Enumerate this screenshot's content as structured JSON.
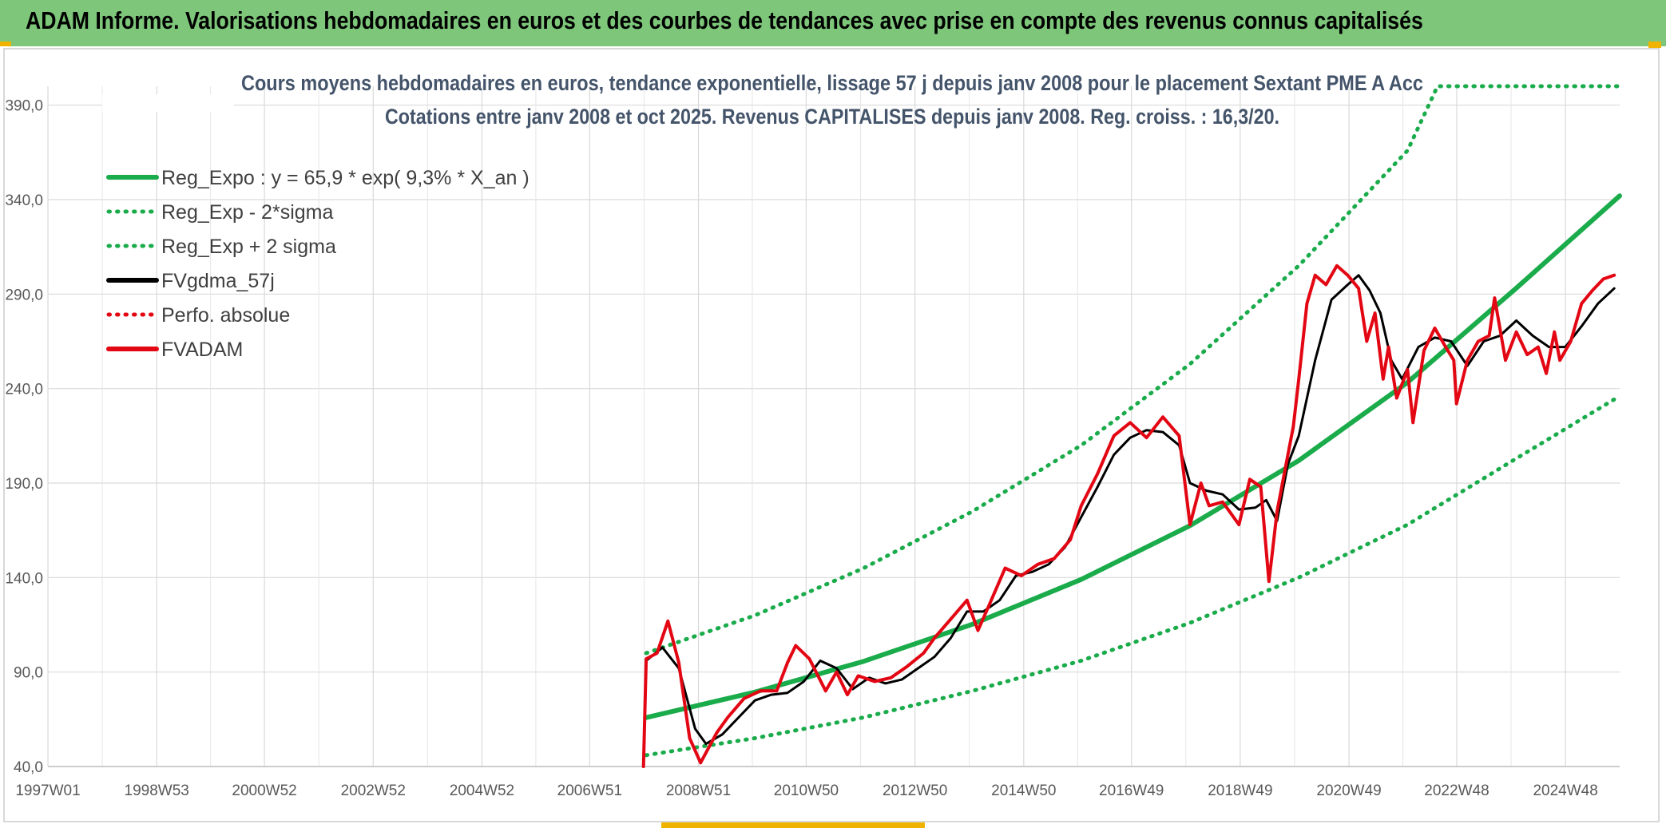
{
  "banner": {
    "title": "ADAM Informe. Valorisations hebdomadaires en euros et des courbes de tendances avec prise en compte des revenus connus capitalisés"
  },
  "colors": {
    "banner": "#7dc67a",
    "trend": "#1aab4b",
    "actual": "#e30613",
    "smooth": "#000000",
    "title": "#44546a"
  },
  "chart_data": {
    "type": "line",
    "title": "Cours moyens hebdomadaires en euros, tendance exponentielle, lissage 57 j depuis janv 2008 pour le placement Sextant PME A Acc",
    "subtitle": "Cotations entre janv 2008 et oct 2025. Revenus CAPITALISES depuis janv 2008. Reg. croiss. : 16,3/20.",
    "xlabel": "",
    "ylabel": "",
    "x_range": [
      1997.0,
      2025.9
    ],
    "ylim": [
      40,
      400
    ],
    "y_ticks": [
      40,
      90,
      140,
      190,
      240,
      290,
      340,
      390
    ],
    "y_tick_labels": [
      "40,0",
      "90,0",
      "140,0",
      "190,0",
      "240,0",
      "290,0",
      "340,0",
      "390,0"
    ],
    "x_tick_labels": [
      "1997W01",
      "1998W53",
      "2000W52",
      "2002W52",
      "2004W52",
      "2006W51",
      "2008W51",
      "2010W50",
      "2012W50",
      "2014W50",
      "2016W49",
      "2018W49",
      "2020W49",
      "2022W48",
      "2024W48"
    ],
    "grid": true,
    "legend_position": "top-left",
    "legend": [
      {
        "label": "Reg_Expo : y = 65,9 * exp( 9,3% *  X_an )",
        "style": "solid",
        "color": "#1aab4b"
      },
      {
        "label": "Reg_Exp - 2*sigma",
        "style": "dotted",
        "color": "#1aab4b"
      },
      {
        "label": "Reg_Exp + 2 sigma",
        "style": "dotted",
        "color": "#1aab4b"
      },
      {
        "label": "FVgdma_57j",
        "style": "solid",
        "color": "#000000"
      },
      {
        "label": "Perfo. absolue",
        "style": "dotted",
        "color": "#e30613"
      },
      {
        "label": "FVADAM",
        "style": "solid",
        "color": "#e30613"
      }
    ],
    "series": [
      {
        "name": "Reg_Expo : y = 65,9 * exp( 9,3% *  X_an )",
        "x": [
          2008.0,
          2010.0,
          2012.0,
          2014.0,
          2016.0,
          2018.0,
          2020.0,
          2022.0,
          2024.0,
          2025.9
        ],
        "y": [
          65.9,
          79.4,
          95.7,
          115.3,
          139.0,
          167.5,
          201.9,
          243.3,
          293.2,
          342.0
        ]
      },
      {
        "name": "Reg_Exp - 2*sigma",
        "x": [
          2008.0,
          2010.0,
          2012.0,
          2014.0,
          2016.0,
          2018.0,
          2020.0,
          2022.0,
          2024.0,
          2025.9
        ],
        "y": [
          46.0,
          55.0,
          66.0,
          80.0,
          96.0,
          116.0,
          140.0,
          168.0,
          203.0,
          236.0
        ]
      },
      {
        "name": "Reg_Exp + 2 sigma",
        "x": [
          2008.0,
          2010.0,
          2012.0,
          2014.0,
          2016.0,
          2018.0,
          2020.0,
          2022.0,
          2022.55,
          2025.9
        ],
        "y": [
          100.0,
          120.0,
          145.0,
          175.0,
          210.0,
          253.0,
          305.0,
          366.0,
          400.0,
          400.0
        ]
      },
      {
        "name": "FVgdma_57j",
        "x": [
          2008.0,
          2008.3,
          2008.6,
          2008.9,
          2009.1,
          2009.4,
          2009.7,
          2010.0,
          2010.3,
          2010.6,
          2010.9,
          2011.2,
          2011.5,
          2011.8,
          2012.1,
          2012.4,
          2012.7,
          2013.0,
          2013.3,
          2013.6,
          2013.9,
          2014.2,
          2014.5,
          2014.8,
          2015.1,
          2015.4,
          2015.7,
          2016.0,
          2016.3,
          2016.6,
          2016.9,
          2017.2,
          2017.5,
          2017.8,
          2018.0,
          2018.3,
          2018.6,
          2018.9,
          2019.2,
          2019.4,
          2019.6,
          2019.8,
          2020.0,
          2020.3,
          2020.6,
          2020.9,
          2021.1,
          2021.3,
          2021.5,
          2021.7,
          2021.9,
          2022.2,
          2022.5,
          2022.8,
          2023.1,
          2023.4,
          2023.7,
          2024.0,
          2024.3,
          2024.6,
          2024.9,
          2025.2,
          2025.5,
          2025.8
        ],
        "y": [
          96,
          103,
          92,
          60,
          52,
          57,
          66,
          75,
          78,
          79,
          85,
          96,
          92,
          81,
          87,
          84,
          86,
          92,
          98,
          108,
          122,
          122,
          128,
          141,
          143,
          147,
          156,
          172,
          188,
          205,
          214,
          218,
          217,
          210,
          190,
          186,
          184,
          176,
          177,
          181,
          170,
          200,
          215,
          255,
          287,
          295,
          300,
          292,
          280,
          255,
          245,
          262,
          267,
          265,
          252,
          265,
          268,
          276,
          268,
          262,
          262,
          273,
          285,
          293
        ]
      },
      {
        "name": "FVADAM",
        "x": [
          2007.95,
          2008.0,
          2008.2,
          2008.4,
          2008.6,
          2008.8,
          2009.0,
          2009.15,
          2009.3,
          2009.5,
          2009.8,
          2010.1,
          2010.4,
          2010.6,
          2010.75,
          2011.0,
          2011.3,
          2011.5,
          2011.7,
          2011.9,
          2012.2,
          2012.5,
          2012.8,
          2013.1,
          2013.3,
          2013.6,
          2013.9,
          2014.1,
          2014.3,
          2014.6,
          2014.9,
          2015.2,
          2015.5,
          2015.8,
          2016.0,
          2016.3,
          2016.6,
          2016.9,
          2017.2,
          2017.5,
          2017.8,
          2018.0,
          2018.2,
          2018.35,
          2018.6,
          2018.9,
          2019.1,
          2019.3,
          2019.45,
          2019.5,
          2019.6,
          2019.8,
          2019.9,
          2020.0,
          2020.15,
          2020.3,
          2020.5,
          2020.7,
          2020.9,
          2021.1,
          2021.25,
          2021.4,
          2021.55,
          2021.65,
          2021.8,
          2022.0,
          2022.1,
          2022.3,
          2022.5,
          2022.7,
          2022.85,
          2022.9,
          2023.1,
          2023.3,
          2023.5,
          2023.6,
          2023.8,
          2024.0,
          2024.2,
          2024.4,
          2024.55,
          2024.7,
          2024.8,
          2025.0,
          2025.2,
          2025.4,
          2025.6,
          2025.8
        ],
        "y": [
          40,
          97,
          100,
          117,
          95,
          55,
          42,
          50,
          58,
          66,
          76,
          80,
          80,
          95,
          104,
          97,
          80,
          90,
          78,
          88,
          85,
          87,
          93,
          100,
          108,
          118,
          128,
          112,
          125,
          145,
          141,
          147,
          150,
          160,
          178,
          195,
          215,
          222,
          214,
          225,
          215,
          168,
          190,
          178,
          180,
          168,
          192,
          188,
          138,
          150,
          175,
          205,
          220,
          245,
          285,
          300,
          295,
          305,
          300,
          293,
          265,
          280,
          245,
          262,
          235,
          250,
          222,
          260,
          272,
          262,
          255,
          232,
          255,
          265,
          268,
          288,
          255,
          270,
          258,
          262,
          248,
          270,
          255,
          265,
          285,
          292,
          298,
          300
        ]
      }
    ]
  }
}
